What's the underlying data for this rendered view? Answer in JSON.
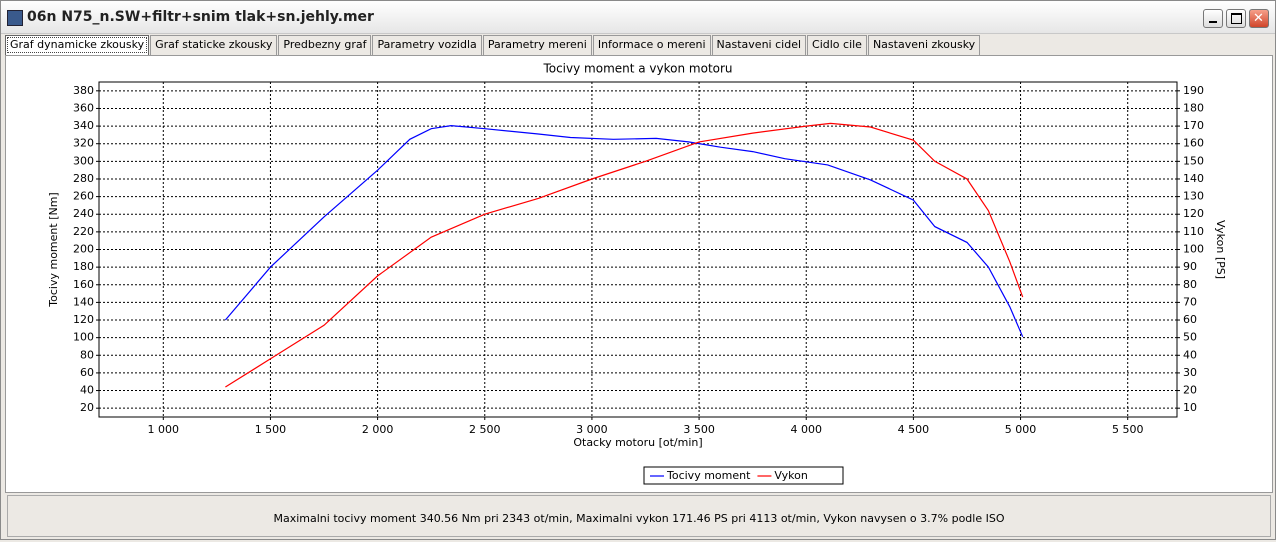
{
  "window": {
    "title": "06n N75_n.SW+filtr+snim tlak+sn.jehly.mer"
  },
  "tabs": [
    "Graf dynamicke zkousky",
    "Graf staticke zkousky",
    "Predbezny graf",
    "Parametry vozidla",
    "Parametry mereni",
    "Informace o mereni",
    "Nastaveni cidel",
    "Cidlo cile",
    "Nastaveni zkousky"
  ],
  "chart_data": {
    "type": "line",
    "title": "Tocivy moment a vykon motoru",
    "x_label": "Otacky motoru [ot/min]",
    "y_label": "Tocivy moment [Nm]",
    "y2_label": "Vykon [PS]",
    "xlim": [
      700,
      5730
    ],
    "xticks": [
      {
        "value": 1000,
        "label": "1 000"
      },
      {
        "value": 1500,
        "label": "1 500"
      },
      {
        "value": 2000,
        "label": "2 000"
      },
      {
        "value": 2500,
        "label": "2 500"
      },
      {
        "value": 3000,
        "label": "3 000"
      },
      {
        "value": 3500,
        "label": "3 500"
      },
      {
        "value": 4000,
        "label": "4 000"
      },
      {
        "value": 4500,
        "label": "4 500"
      },
      {
        "value": 5000,
        "label": "5 000"
      },
      {
        "value": 5500,
        "label": "5 500"
      }
    ],
    "ylim": [
      10,
      390
    ],
    "yticks": [
      20,
      40,
      60,
      80,
      100,
      120,
      140,
      160,
      180,
      200,
      220,
      240,
      260,
      280,
      300,
      320,
      340,
      360,
      380
    ],
    "y2lim": [
      5,
      195
    ],
    "y2ticks": [
      10,
      20,
      30,
      40,
      50,
      60,
      70,
      80,
      90,
      100,
      110,
      120,
      130,
      140,
      150,
      160,
      170,
      180,
      190
    ],
    "grid": true,
    "legend": "bottom",
    "series": [
      {
        "name": "Tocivy moment",
        "color": "#0000ff",
        "x": [
          1290,
          1500,
          1750,
          2000,
          2150,
          2250,
          2343,
          2500,
          2750,
          2900,
          3100,
          3300,
          3450,
          3600,
          3750,
          3900,
          4100,
          4300,
          4500,
          4600,
          4750,
          4850,
          4950,
          5010
        ],
        "values": [
          120,
          180,
          237,
          290,
          325,
          337,
          340.5,
          337,
          331,
          327,
          325,
          326,
          322,
          316,
          311,
          303,
          296,
          279,
          256,
          226,
          208,
          180,
          135,
          101
        ]
      },
      {
        "name": "Vykon",
        "color": "#ff0000",
        "axis": "y2",
        "x": [
          1290,
          1500,
          1750,
          2000,
          2250,
          2500,
          2750,
          3000,
          3250,
          3500,
          3750,
          4000,
          4113,
          4300,
          4500,
          4600,
          4750,
          4850,
          4950,
          5010
        ],
        "values": [
          22,
          38,
          57,
          85,
          107,
          120,
          129,
          140,
          150,
          161,
          166,
          170,
          171.5,
          169.5,
          162,
          150,
          140,
          122,
          93,
          73
        ]
      }
    ]
  },
  "status": "Maximalni tocivy moment 340.56 Nm pri 2343 ot/min,  Maximalni vykon 171.46 PS pri 4113 ot/min,  Vykon navysen o 3.7% podle ISO"
}
